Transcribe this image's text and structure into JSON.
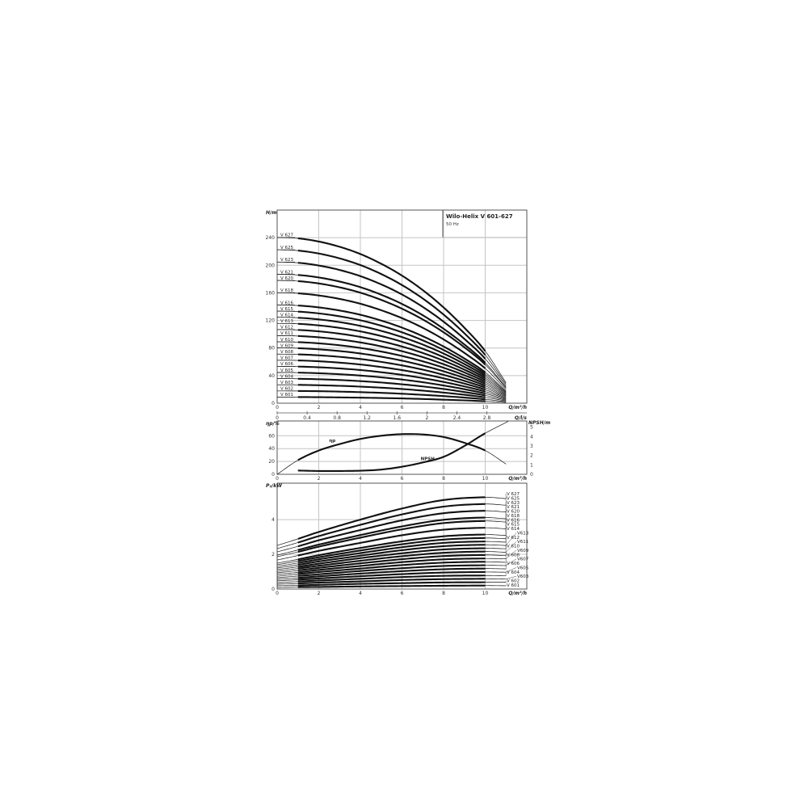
{
  "title_box": {
    "title": "Wilo-Helix V 601-627",
    "frequency": "50 Hz"
  },
  "colors": {
    "curve": "#111111",
    "grid": "#c4c4c4",
    "frame": "#555555"
  },
  "chart_data": [
    {
      "type": "line",
      "panel": "head",
      "ylabel": "H/m",
      "xlabel": "Q/m³/h",
      "x2label": "Q/l/s",
      "xlim": [
        0,
        12
      ],
      "ylim": [
        0,
        280
      ],
      "xticks": [
        0,
        2,
        4,
        6,
        8,
        10
      ],
      "x2ticks": [
        0,
        0.4,
        0.8,
        1.2,
        1.6,
        2.0,
        2.4,
        2.8
      ],
      "yticks": [
        0,
        40,
        80,
        120,
        160,
        200,
        240
      ],
      "grid": true,
      "x": [
        0,
        1,
        2,
        3,
        4,
        5,
        6,
        7,
        8,
        9,
        10,
        11
      ],
      "series": [
        {
          "name": "V 627",
          "values": [
            240.3,
            239,
            234.4,
            226.8,
            216.3,
            202.2,
            185,
            163.9,
            138.8,
            109.4,
            75.6,
            29.7
          ]
        },
        {
          "name": "V 625",
          "values": [
            222.5,
            221.3,
            217,
            210,
            200.3,
            187.3,
            171.3,
            151.8,
            128.5,
            101.3,
            70,
            27.5
          ]
        },
        {
          "name": "V 623",
          "values": [
            204.7,
            203.6,
            199.6,
            193.2,
            184.2,
            172.3,
            157.6,
            139.6,
            118.2,
            93.2,
            64.4,
            25.3
          ]
        },
        {
          "name": "V 621",
          "values": [
            186.9,
            185.9,
            182.3,
            176.4,
            168.2,
            157.3,
            143.9,
            127.5,
            107.9,
            85.1,
            58.8,
            23.1
          ]
        },
        {
          "name": "V 620",
          "values": [
            178,
            177,
            173.6,
            168,
            160.2,
            149.8,
            137,
            121.4,
            102.8,
            81,
            56,
            22
          ]
        },
        {
          "name": "V 618",
          "values": [
            160.2,
            159.3,
            156.2,
            151.2,
            144.2,
            134.8,
            123.3,
            109.3,
            92.5,
            72.9,
            50.4,
            19.8
          ]
        },
        {
          "name": "V 616",
          "values": [
            142.4,
            141.6,
            138.9,
            134.4,
            128.2,
            119.8,
            109.6,
            97.1,
            82.2,
            64.8,
            44.8,
            17.6
          ]
        },
        {
          "name": "V 615",
          "values": [
            133.5,
            132.8,
            130.2,
            126,
            120.2,
            112.4,
            102.8,
            91.1,
            77.1,
            60.8,
            42,
            16.5
          ]
        },
        {
          "name": "V 614",
          "values": [
            124.6,
            123.9,
            121.5,
            117.6,
            112.1,
            104.9,
            95.9,
            85,
            72,
            56.7,
            39.2,
            15.4
          ]
        },
        {
          "name": "V 613",
          "values": [
            115.7,
            115.1,
            112.8,
            109.2,
            104.1,
            97.4,
            89.1,
            78.9,
            66.8,
            52.7,
            36.4,
            14.3
          ]
        },
        {
          "name": "V 612",
          "values": [
            106.8,
            106.2,
            104.2,
            100.8,
            96.1,
            89.9,
            82.2,
            72.8,
            61.7,
            48.6,
            33.6,
            13.2
          ]
        },
        {
          "name": "V 611",
          "values": [
            97.9,
            97.4,
            95.5,
            92.4,
            88.1,
            82.4,
            75.4,
            66.8,
            56.5,
            44.6,
            30.8,
            12.1
          ]
        },
        {
          "name": "V 610",
          "values": [
            89,
            88.5,
            86.8,
            84,
            80.1,
            74.9,
            68.5,
            60.7,
            51.4,
            40.5,
            28,
            11
          ]
        },
        {
          "name": "V 609",
          "values": [
            80.1,
            79.7,
            78.1,
            75.6,
            72.1,
            67.4,
            61.7,
            54.6,
            46.3,
            36.5,
            25.2,
            9.9
          ]
        },
        {
          "name": "V 608",
          "values": [
            71.2,
            70.8,
            69.4,
            67.2,
            64.1,
            59.9,
            54.8,
            48.6,
            41.1,
            32.4,
            22.4,
            8.8
          ]
        },
        {
          "name": "V 607",
          "values": [
            62.3,
            62,
            60.8,
            58.8,
            56.1,
            52.4,
            48,
            42.5,
            36,
            28.4,
            19.6,
            7.7
          ]
        },
        {
          "name": "V 606",
          "values": [
            53.4,
            53.1,
            52.1,
            50.4,
            48.1,
            44.9,
            41.1,
            36.4,
            30.8,
            24.3,
            16.8,
            6.6
          ]
        },
        {
          "name": "V 605",
          "values": [
            44.5,
            44.3,
            43.4,
            42,
            40.1,
            37.5,
            34.3,
            30.4,
            25.7,
            20.3,
            14,
            5.5
          ]
        },
        {
          "name": "V 604",
          "values": [
            35.6,
            35.4,
            34.7,
            33.6,
            32,
            30,
            27.4,
            24.3,
            20.6,
            16.2,
            11.2,
            4.4
          ]
        },
        {
          "name": "V 603",
          "values": [
            26.7,
            26.6,
            26,
            25.2,
            24,
            22.5,
            20.6,
            18.2,
            15.4,
            12.2,
            8.4,
            3.3
          ]
        },
        {
          "name": "V 602",
          "values": [
            17.8,
            17.7,
            17.4,
            16.8,
            16,
            15,
            13.7,
            12.1,
            10.3,
            8.1,
            5.6,
            2.2
          ]
        },
        {
          "name": "V 601",
          "values": [
            8.9,
            8.9,
            8.7,
            8.4,
            8,
            7.5,
            6.9,
            6.1,
            5.1,
            4.1,
            2.8,
            1.1
          ]
        }
      ]
    },
    {
      "type": "line",
      "panel": "efficiency-npsh",
      "ylabel": "ηp/%",
      "y2label": "NPSH/m",
      "xlabel": "Q/m³/h",
      "xlim": [
        0,
        12
      ],
      "ylim": [
        0,
        83
      ],
      "y2lim": [
        0,
        5.65
      ],
      "xticks": [
        0,
        2,
        4,
        6,
        8,
        10
      ],
      "yticks": [
        0,
        20,
        40,
        60
      ],
      "y2ticks": [
        0,
        1,
        2,
        3,
        4,
        5
      ],
      "grid": true,
      "series": [
        {
          "name": "ηp",
          "axis": "left",
          "x": [
            0,
            1,
            2,
            3,
            4,
            5,
            6,
            7,
            8,
            9,
            10,
            11
          ],
          "values": [
            0,
            22,
            37,
            47,
            55,
            60,
            62.5,
            62,
            58,
            49,
            37,
            16
          ]
        },
        {
          "name": "NPSH",
          "axis": "right",
          "x": [
            1,
            2,
            3,
            4,
            5,
            6,
            7,
            8,
            9,
            10,
            11.1
          ],
          "values": [
            0.4,
            0.35,
            0.35,
            0.38,
            0.5,
            0.8,
            1.25,
            1.85,
            3.0,
            4.35,
            5.6
          ]
        }
      ]
    },
    {
      "type": "line",
      "panel": "power",
      "ylabel": "P₂/kW",
      "xlabel": "Q/m³/h",
      "xlim": [
        0,
        12
      ],
      "ylim": [
        0,
        6.1
      ],
      "xticks": [
        0,
        2,
        4,
        6,
        8,
        10
      ],
      "yticks": [
        0,
        2,
        4
      ],
      "grid": true,
      "x": [
        0,
        1,
        2,
        4,
        6,
        8,
        10,
        11
      ],
      "series": [
        {
          "name": "V 627",
          "values": [
            2.51,
            2.89,
            3.29,
            4.0,
            4.64,
            5.13,
            5.29,
            5.21
          ]
        },
        {
          "name": "V 625",
          "values": [
            2.33,
            2.68,
            3.05,
            3.7,
            4.3,
            4.75,
            4.9,
            4.83
          ]
        },
        {
          "name": "V 623",
          "values": [
            2.14,
            2.46,
            2.81,
            3.4,
            3.96,
            4.37,
            4.51,
            4.44
          ]
        },
        {
          "name": "V 621",
          "values": [
            1.95,
            2.25,
            2.56,
            3.11,
            3.61,
            3.99,
            4.12,
            4.05
          ]
        },
        {
          "name": "V 620",
          "values": [
            1.86,
            2.14,
            2.44,
            2.96,
            3.44,
            3.8,
            3.92,
            3.86
          ]
        },
        {
          "name": "V 618",
          "values": [
            1.67,
            1.93,
            2.2,
            2.66,
            3.1,
            3.42,
            3.53,
            3.47
          ]
        },
        {
          "name": "V 616",
          "values": [
            1.49,
            1.71,
            1.95,
            2.37,
            2.75,
            3.04,
            3.14,
            3.09
          ]
        },
        {
          "name": "V 615",
          "values": [
            1.4,
            1.61,
            1.83,
            2.22,
            2.58,
            2.85,
            2.94,
            2.9
          ]
        },
        {
          "name": "V 614",
          "values": [
            1.3,
            1.5,
            1.71,
            2.07,
            2.41,
            2.66,
            2.74,
            2.7
          ]
        },
        {
          "name": "V613",
          "values": [
            1.21,
            1.39,
            1.59,
            1.92,
            2.24,
            2.47,
            2.55,
            2.51
          ]
        },
        {
          "name": "V 612",
          "values": [
            1.12,
            1.28,
            1.46,
            1.78,
            2.06,
            2.28,
            2.35,
            2.32
          ]
        },
        {
          "name": "V611",
          "values": [
            1.02,
            1.18,
            1.34,
            1.63,
            1.89,
            2.09,
            2.16,
            2.12
          ]
        },
        {
          "name": "V 610",
          "values": [
            0.93,
            1.07,
            1.22,
            1.48,
            1.72,
            1.9,
            1.96,
            1.93
          ]
        },
        {
          "name": "V609",
          "values": [
            0.84,
            0.96,
            1.1,
            1.33,
            1.55,
            1.71,
            1.76,
            1.74
          ]
        },
        {
          "name": "V 608",
          "values": [
            0.74,
            0.86,
            0.98,
            1.18,
            1.38,
            1.52,
            1.57,
            1.54
          ]
        },
        {
          "name": "V607",
          "values": [
            0.65,
            0.75,
            0.85,
            1.04,
            1.2,
            1.33,
            1.37,
            1.35
          ]
        },
        {
          "name": "V 606",
          "values": [
            0.56,
            0.64,
            0.73,
            0.89,
            1.03,
            1.14,
            1.18,
            1.16
          ]
        },
        {
          "name": "V605",
          "values": [
            0.47,
            0.54,
            0.61,
            0.74,
            0.86,
            0.95,
            0.98,
            0.97
          ]
        },
        {
          "name": "V 604",
          "values": [
            0.37,
            0.43,
            0.49,
            0.59,
            0.69,
            0.76,
            0.78,
            0.77
          ]
        },
        {
          "name": "V603",
          "values": [
            0.28,
            0.32,
            0.37,
            0.44,
            0.52,
            0.57,
            0.59,
            0.58
          ]
        },
        {
          "name": "V 602",
          "values": [
            0.19,
            0.21,
            0.24,
            0.3,
            0.34,
            0.38,
            0.39,
            0.39
          ]
        },
        {
          "name": "V 601",
          "values": [
            0.09,
            0.11,
            0.12,
            0.15,
            0.17,
            0.19,
            0.2,
            0.19
          ]
        }
      ]
    }
  ]
}
